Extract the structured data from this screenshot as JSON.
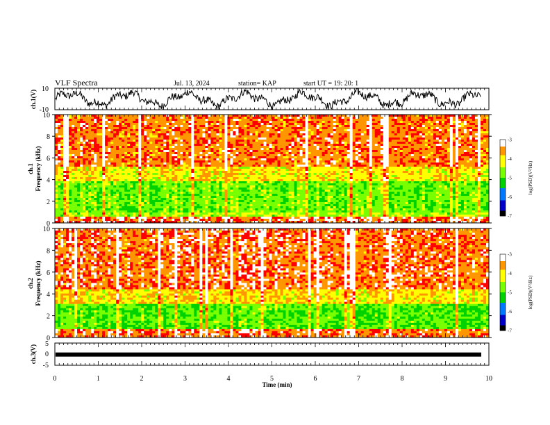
{
  "header": {
    "title": "VLF Spectra",
    "date": "Jul. 13, 2024",
    "station": "station= KAP",
    "start": "start UT =  19: 20: 1"
  },
  "colors": {
    "spectrogram_scale": [
      "#000000",
      "#0000c8",
      "#0078ff",
      "#00d200",
      "#78ff00",
      "#ffff00",
      "#ff9600",
      "#ff0000",
      "#ffffff"
    ]
  },
  "chart_data": [
    {
      "type": "line",
      "panel": "ch.1 waveform",
      "ylabel": "ch.1(V)",
      "ylim": [
        -10,
        10
      ],
      "y_ticks": [
        "10",
        "-10"
      ],
      "xlim": [
        0,
        10
      ],
      "description_values": {
        "min": -10,
        "max": 10
      }
    },
    {
      "type": "heatmap",
      "panel": "ch.1 spectrogram",
      "ylabel_line1": "ch.1",
      "ylabel_line2": "Frequency (kHz)",
      "ylim": [
        0,
        10
      ],
      "y_ticks": [
        "0",
        "2",
        "4",
        "6",
        "8",
        "10"
      ],
      "xlim": [
        0,
        10
      ],
      "colorbar": {
        "label": "log(PSD)(V²/Hz)",
        "range": [
          -7,
          -3
        ],
        "ticks": [
          "-3",
          "-4",
          "-5",
          "-6",
          "-7"
        ]
      },
      "bands": [
        {
          "from_khz": 0.0,
          "to_khz": 0.6,
          "level": -3.2
        },
        {
          "from_khz": 0.6,
          "to_khz": 1.0,
          "level": -4.5
        },
        {
          "from_khz": 1.0,
          "to_khz": 3.8,
          "level": -4.8
        },
        {
          "from_khz": 3.8,
          "to_khz": 5.2,
          "level": -4.1
        },
        {
          "from_khz": 5.2,
          "to_khz": 10.0,
          "level": -3.4
        }
      ]
    },
    {
      "type": "heatmap",
      "panel": "ch.2 spectrogram",
      "ylabel_line1": "ch.2",
      "ylabel_line2": "Frequency (kHz)",
      "ylim": [
        0,
        10
      ],
      "y_ticks": [
        "0",
        "2",
        "4",
        "6",
        "8",
        "10"
      ],
      "xlim": [
        0,
        10
      ],
      "colorbar": {
        "label": "log(PSD)(V²/Hz)",
        "range": [
          -7,
          -3
        ],
        "ticks": [
          "-3",
          "-4",
          "-5",
          "-6",
          "-7"
        ]
      },
      "bands": [
        {
          "from_khz": 0.0,
          "to_khz": 0.7,
          "level": -3.3
        },
        {
          "from_khz": 0.7,
          "to_khz": 3.0,
          "level": -4.9
        },
        {
          "from_khz": 3.0,
          "to_khz": 4.5,
          "level": -4.0
        },
        {
          "from_khz": 4.5,
          "to_khz": 10.0,
          "level": -3.3
        }
      ]
    },
    {
      "type": "line",
      "panel": "ch.3 waveform",
      "ylabel": "ch.3(V)",
      "ylim": [
        -5,
        5
      ],
      "y_ticks": [
        "5",
        "0",
        "-5"
      ],
      "xlim": [
        0,
        10
      ],
      "level": -0.2
    }
  ],
  "xaxis": {
    "label": "Time (min)",
    "ticks": [
      "0",
      "1",
      "2",
      "3",
      "4",
      "5",
      "6",
      "7",
      "8",
      "9",
      "10"
    ]
  }
}
